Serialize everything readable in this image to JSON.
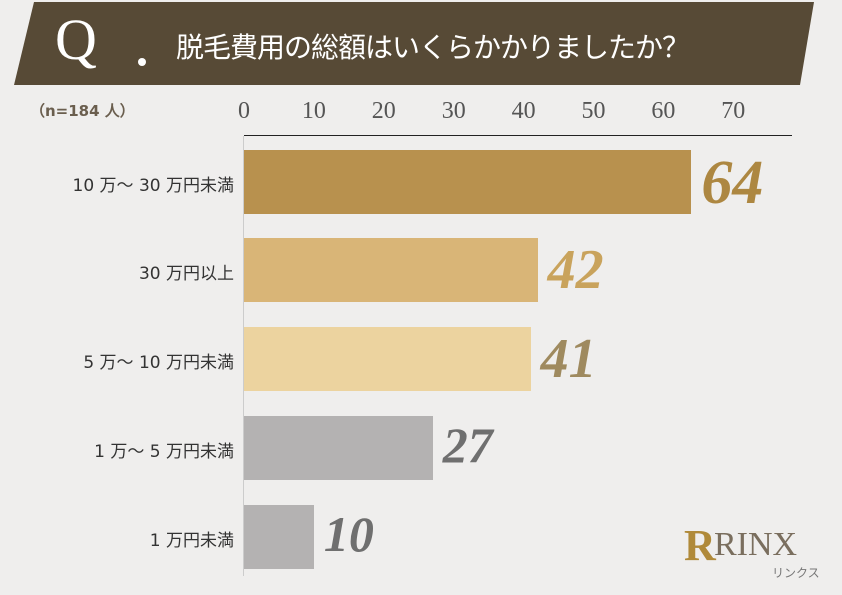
{
  "header": {
    "q": "Q",
    "title": "脱毛費用の総額はいくらかかりましたか？"
  },
  "sample": "（n=184 人）",
  "logo": {
    "mark": "R",
    "text": "RINX",
    "kana": "リンクス"
  },
  "chart_data": {
    "type": "bar",
    "orientation": "horizontal",
    "categories": [
      "10 万～ 30 万円未満",
      "30 万円以上",
      "5 万～ 10 万円未満",
      "1 万～ 5 万円未満",
      "1 万円未満"
    ],
    "values": [
      64,
      42,
      41,
      27,
      10
    ],
    "value_labels": [
      "64",
      "42",
      "41",
      "27",
      "10"
    ],
    "colors": [
      "#b8914e",
      "#d9b577",
      "#ecd39f",
      "#b4b2b2",
      "#b4b2b2"
    ],
    "label_colors": [
      "#ad8741",
      "#c9a35c",
      "#9f8a5f",
      "#6f6f6f",
      "#6f6f6f"
    ],
    "xlim": [
      0,
      78
    ],
    "ticks": [
      "0",
      "10",
      "20",
      "30",
      "40",
      "50",
      "60",
      "70"
    ],
    "grid": false,
    "legend": "none"
  }
}
